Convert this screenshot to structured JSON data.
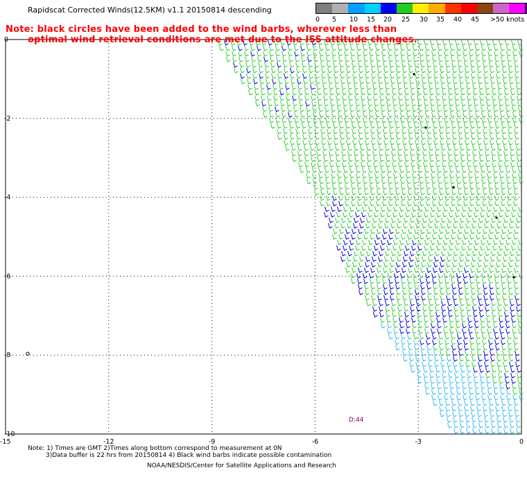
{
  "title": "Rapidscat Corrected Winds(12.5KM) v1.1 20150814 descending",
  "note_line1": "Note: black circles have been added to the wind barbs, wherever less than",
  "note_line2": "optimal wind retrieval conditions are met due to the ISS attitude changes.",
  "legend": {
    "colors": [
      "#7f7f7f",
      "#b0b0b0",
      "#00a0ff",
      "#00d0ff",
      "#0000ff",
      "#22cc22",
      "#ffee00",
      "#ffaa00",
      "#ff3300",
      "#ff0000",
      "#8b4513",
      "#cc66cc",
      "#ff00ff",
      "#440066"
    ],
    "labels": [
      "0",
      "5",
      "10",
      "15",
      "20",
      "25",
      "30",
      "35",
      "40",
      "45",
      ">50 knots"
    ]
  },
  "map": {
    "x_axis": {
      "min": -15,
      "max": 0,
      "ticks": [
        "-15",
        "-12",
        "-9",
        "-6",
        "-3",
        "0"
      ]
    },
    "y_axis": {
      "min": -10,
      "max": 0,
      "ticks": [
        "0",
        "-2",
        "-4",
        "-6",
        "-8",
        "-10"
      ]
    },
    "swath_colors": {
      "green": "#33cc33",
      "blue": "#0000dd",
      "cyan": "#33bbee",
      "black": "#000000"
    }
  },
  "marker_label": "D:44",
  "footer_line1": "Note: 1) Times are GMT 2)Times along bottom correspond to measurement at 0N",
  "footer_line2": "3)Data buffer is 22 hrs from 20150814 4) Black wind barbs indicate possible contamination",
  "footer_line3": "NOAA/NESDIS/Center for Satellite Applications and Research"
}
